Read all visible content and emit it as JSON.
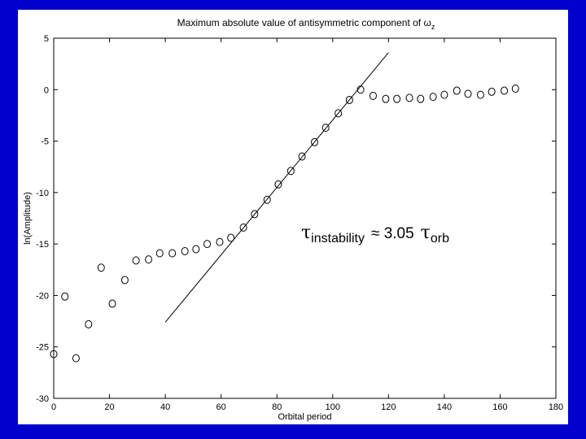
{
  "chart_data": {
    "type": "scatter",
    "title": "Maximum absolute value of antisymmetric component of ω",
    "title_subscript": "z",
    "xlabel": "Orbital period",
    "ylabel": "ln(Amplitude)",
    "xlim": [
      0,
      180
    ],
    "ylim": [
      -30,
      5
    ],
    "xticks": [
      0,
      20,
      40,
      60,
      80,
      100,
      120,
      140,
      160,
      180
    ],
    "yticks": [
      -30,
      -25,
      -20,
      -15,
      -10,
      -5,
      0,
      5
    ],
    "grid": false,
    "series": [
      {
        "marker": "circle",
        "x": [
          0,
          4,
          8,
          12.5,
          17,
          21,
          25.5,
          29.5,
          34,
          38,
          42.5,
          47,
          51,
          55,
          59.5,
          63.5,
          68,
          72,
          76.5,
          80.5,
          85,
          89,
          93.5,
          97.5,
          102,
          106,
          110,
          114.5,
          119,
          123,
          127.5,
          131.5,
          136,
          140,
          144.5,
          148.5,
          153,
          157,
          161.5,
          165.5
        ],
        "y": [
          -25.7,
          -20.1,
          -26.1,
          -22.8,
          -17.3,
          -20.8,
          -18.5,
          -16.6,
          -16.5,
          -15.9,
          -15.9,
          -15.7,
          -15.5,
          -15,
          -14.8,
          -14.4,
          -13.4,
          -12.1,
          -10.7,
          -9.2,
          -7.9,
          -6.5,
          -5.1,
          -3.7,
          -2.3,
          -1,
          0,
          -0.6,
          -0.9,
          -0.9,
          -0.8,
          -0.9,
          -0.7,
          -0.5,
          -0.1,
          -0.4,
          -0.5,
          -0.2,
          -0.1,
          0.1
        ]
      }
    ],
    "fit_line": {
      "x": [
        40,
        120
      ],
      "y": [
        -22.6,
        3.6
      ]
    },
    "annotation": {
      "tau": "τ",
      "sub1": "instability",
      "approx": "≈ 3.05",
      "tau2": "τ",
      "sub2": "orb"
    }
  }
}
